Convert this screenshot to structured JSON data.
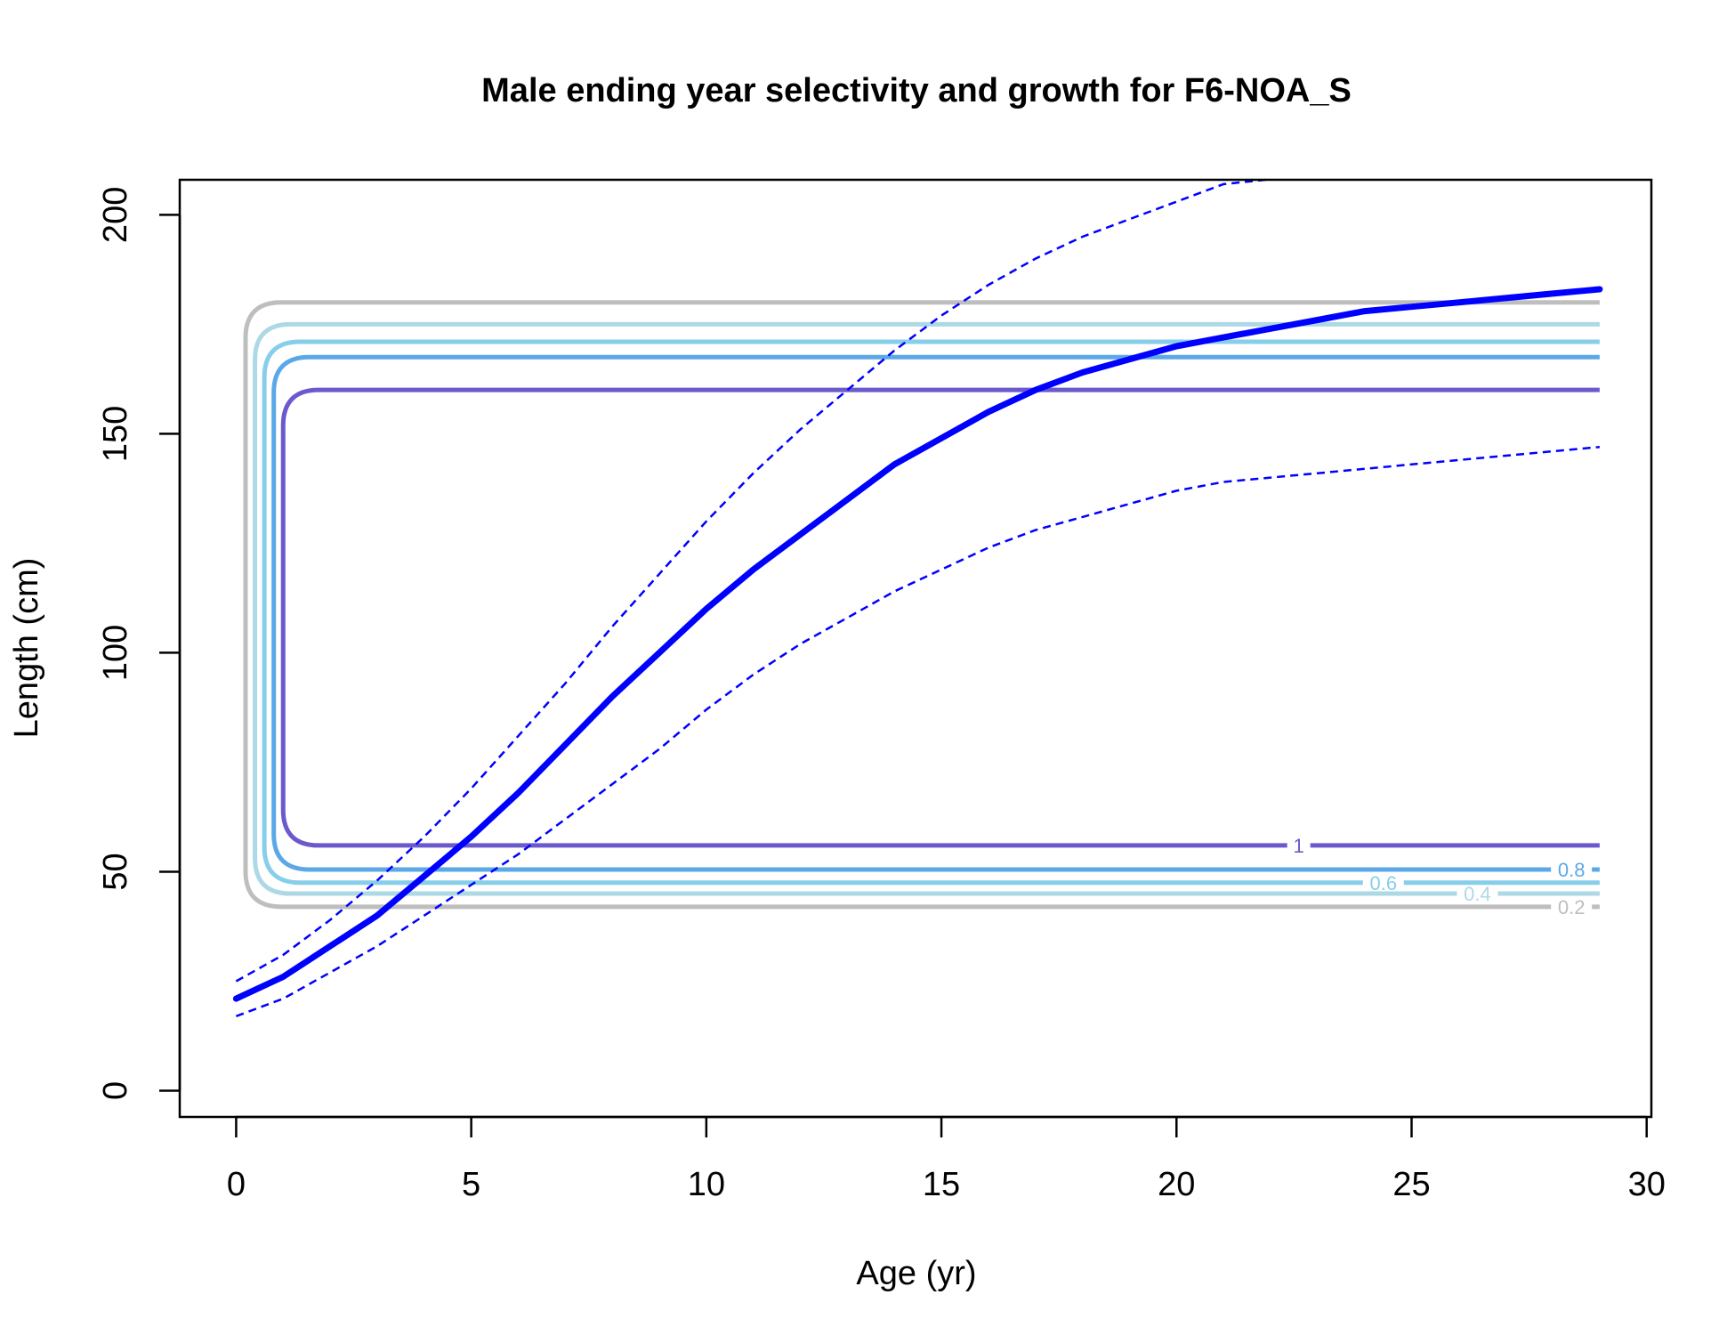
{
  "chart_data": {
    "type": "line",
    "title": "Male ending year selectivity and growth for F6-NOA_S",
    "xlabel": "Age (yr)",
    "ylabel": "Length (cm)",
    "xlim": [
      -1.2,
      30.1
    ],
    "ylim": [
      -6,
      208
    ],
    "x_ticks": [
      0,
      5,
      10,
      15,
      20,
      25,
      30
    ],
    "y_ticks": [
      0,
      50,
      100,
      150,
      200
    ],
    "grid": false,
    "growth": {
      "mean": {
        "color": "#0000ff",
        "x": [
          0,
          1,
          2,
          3,
          4,
          5,
          6,
          7,
          8,
          9,
          10,
          11,
          12,
          13,
          14,
          15,
          16,
          17,
          18,
          19,
          20,
          21,
          22,
          23,
          24,
          25,
          26,
          27,
          28,
          29
        ],
        "y": [
          21,
          26,
          33,
          40,
          49,
          58,
          68,
          79,
          90,
          100,
          110,
          119,
          127,
          135,
          143,
          149,
          155,
          160,
          164,
          167,
          170,
          172,
          174,
          176,
          178,
          179,
          180,
          181,
          182,
          183
        ]
      },
      "upper": {
        "color": "#0000ff",
        "dashed": true,
        "x": [
          0,
          1,
          2,
          3,
          4,
          5,
          6,
          7,
          8,
          9,
          10,
          11,
          12,
          13,
          14,
          15,
          16,
          17,
          18,
          19,
          20,
          21,
          21.9
        ],
        "y": [
          25,
          31,
          39,
          48,
          58,
          69,
          81,
          93,
          106,
          118,
          130,
          141,
          151,
          160,
          169,
          177,
          184,
          190,
          195,
          199,
          203,
          207,
          208
        ]
      },
      "lower": {
        "color": "#0000ff",
        "dashed": true,
        "x": [
          0,
          1,
          2,
          3,
          4,
          5,
          6,
          7,
          8,
          9,
          10,
          11,
          12,
          13,
          14,
          15,
          16,
          17,
          18,
          19,
          20,
          21,
          22,
          23,
          24,
          25,
          26,
          27,
          28,
          29
        ],
        "y": [
          17,
          21,
          27,
          33,
          40,
          47,
          54,
          62,
          70,
          78,
          87,
          95,
          102,
          108,
          114,
          119,
          124,
          128,
          131,
          134,
          137,
          139,
          140,
          141,
          142,
          143,
          144,
          145,
          146,
          147
        ]
      }
    },
    "contours": [
      {
        "label": "0.2",
        "color": "#bebebe",
        "x_start": 0.2,
        "x_end": 29,
        "y_low": 42,
        "y_high": 180,
        "label_x": 28.4
      },
      {
        "label": "0.4",
        "color": "#add8e6",
        "x_start": 0.4,
        "x_end": 29,
        "y_low": 45,
        "y_high": 175,
        "label_x": 26.4
      },
      {
        "label": "0.6",
        "color": "#87ceeb",
        "x_start": 0.6,
        "x_end": 29,
        "y_low": 47.5,
        "y_high": 171,
        "label_x": 24.4
      },
      {
        "label": "0.8",
        "color": "#5ba8e8",
        "x_start": 0.8,
        "x_end": 29,
        "y_low": 50.5,
        "y_high": 167.5,
        "label_x": 28.4
      },
      {
        "label": "1",
        "color": "#6a5acd",
        "x_start": 1.0,
        "x_end": 29,
        "y_low": 56,
        "y_high": 160,
        "label_x": 22.6
      }
    ]
  }
}
